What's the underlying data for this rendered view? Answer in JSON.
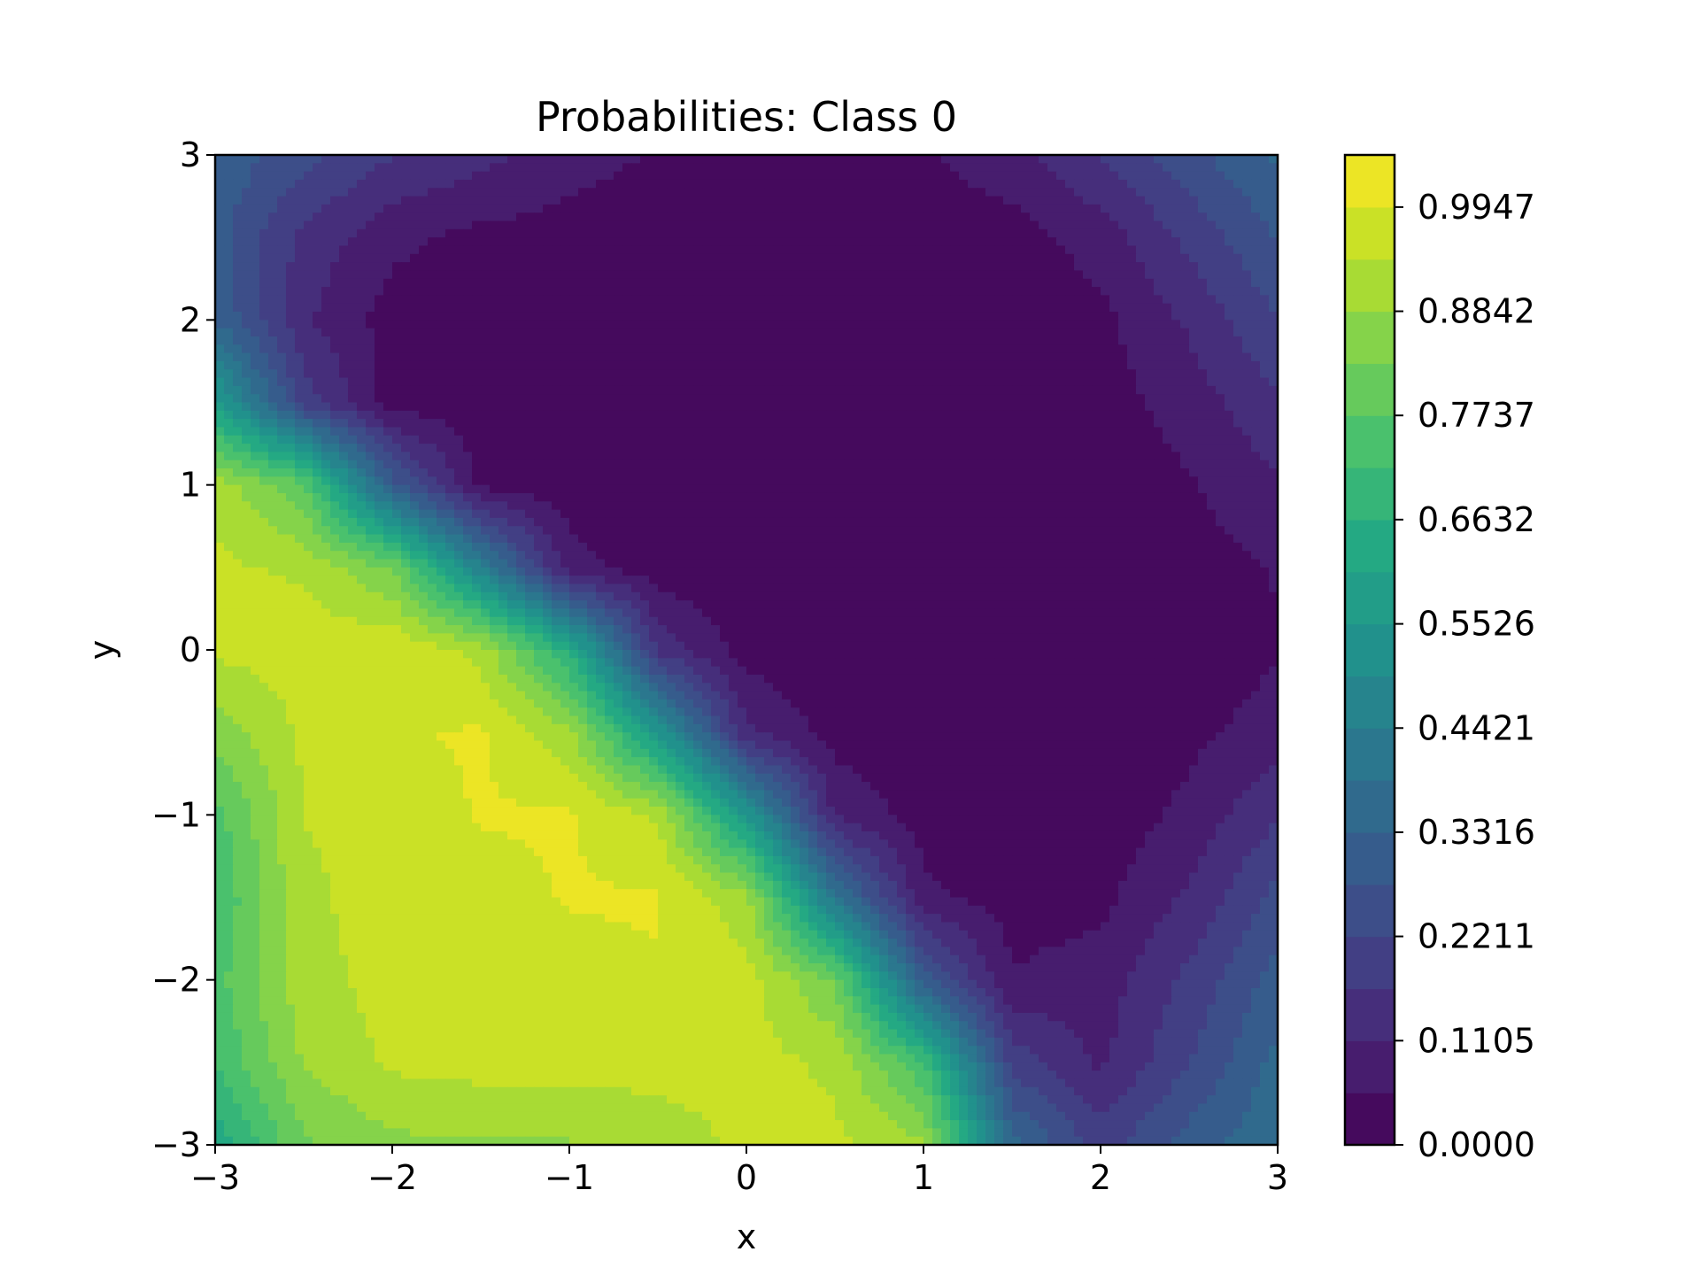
{
  "chart_data": {
    "type": "heatmap",
    "subtype": "filled-contour",
    "title": "Probabilities: Class 0",
    "xlabel": "x",
    "ylabel": "y",
    "xlim": [
      -3,
      3
    ],
    "ylim": [
      -3,
      3
    ],
    "x_ticks": [
      -3,
      -2,
      -1,
      0,
      1,
      2,
      3
    ],
    "y_ticks": [
      -3,
      -2,
      -1,
      0,
      1,
      2,
      3
    ],
    "x_tick_labels": [
      "−3",
      "−2",
      "−1",
      "0",
      "1",
      "2",
      "3"
    ],
    "y_tick_labels": [
      "−3",
      "−2",
      "−1",
      "0",
      "1",
      "2",
      "3"
    ],
    "grid": false,
    "colormap": "viridis",
    "colorbar": {
      "range": [
        0,
        1.05
      ],
      "levels": 19,
      "tick_values": [
        0.0,
        0.1105,
        0.2211,
        0.3316,
        0.4421,
        0.5526,
        0.6632,
        0.7737,
        0.8842,
        0.9947
      ],
      "tick_labels": [
        "0.0000",
        "0.1105",
        "0.2211",
        "0.3316",
        "0.4421",
        "0.5526",
        "0.6632",
        "0.7737",
        "0.8842",
        "0.9947"
      ]
    },
    "grid_x": [
      -3,
      -2.5,
      -2,
      -1.5,
      -1,
      -0.5,
      0,
      0.5,
      1,
      1.5,
      2,
      2.5,
      3
    ],
    "grid_y": [
      3,
      2.5,
      2,
      1.5,
      1,
      0.5,
      0,
      -0.5,
      -1,
      -1.5,
      -2,
      -2.5,
      -3
    ],
    "z": [
      [
        0.32,
        0.24,
        0.17,
        0.13,
        0.08,
        0.05,
        0.04,
        0.04,
        0.05,
        0.09,
        0.17,
        0.26,
        0.34
      ],
      [
        0.3,
        0.15,
        0.07,
        0.04,
        0.03,
        0.02,
        0.02,
        0.02,
        0.02,
        0.03,
        0.08,
        0.18,
        0.28
      ],
      [
        0.33,
        0.12,
        0.03,
        0.02,
        0.02,
        0.02,
        0.02,
        0.02,
        0.02,
        0.02,
        0.04,
        0.12,
        0.22
      ],
      [
        0.58,
        0.2,
        0.03,
        0.02,
        0.02,
        0.02,
        0.02,
        0.02,
        0.02,
        0.02,
        0.03,
        0.08,
        0.16
      ],
      [
        0.92,
        0.78,
        0.3,
        0.04,
        0.02,
        0.02,
        0.02,
        0.02,
        0.02,
        0.02,
        0.02,
        0.05,
        0.1
      ],
      [
        0.95,
        0.93,
        0.82,
        0.45,
        0.08,
        0.02,
        0.02,
        0.02,
        0.02,
        0.02,
        0.02,
        0.03,
        0.06
      ],
      [
        0.95,
        0.97,
        0.99,
        0.92,
        0.65,
        0.15,
        0.03,
        0.02,
        0.02,
        0.02,
        0.02,
        0.02,
        0.05
      ],
      [
        0.85,
        0.95,
        0.99,
        1.0,
        0.9,
        0.55,
        0.12,
        0.03,
        0.02,
        0.02,
        0.02,
        0.04,
        0.08
      ],
      [
        0.75,
        0.94,
        0.96,
        1.0,
        1.0,
        0.93,
        0.55,
        0.1,
        0.03,
        0.02,
        0.02,
        0.07,
        0.16
      ],
      [
        0.72,
        0.93,
        0.96,
        0.97,
        1.0,
        1.0,
        0.9,
        0.4,
        0.07,
        0.03,
        0.04,
        0.12,
        0.24
      ],
      [
        0.75,
        0.92,
        0.96,
        0.96,
        0.97,
        0.99,
        0.96,
        0.82,
        0.3,
        0.06,
        0.08,
        0.18,
        0.3
      ],
      [
        0.72,
        0.89,
        0.95,
        0.96,
        0.96,
        0.96,
        0.96,
        0.93,
        0.72,
        0.2,
        0.1,
        0.22,
        0.35
      ],
      [
        0.62,
        0.82,
        0.87,
        0.88,
        0.88,
        0.91,
        0.95,
        0.95,
        0.9,
        0.35,
        0.2,
        0.3,
        0.38
      ]
    ]
  }
}
